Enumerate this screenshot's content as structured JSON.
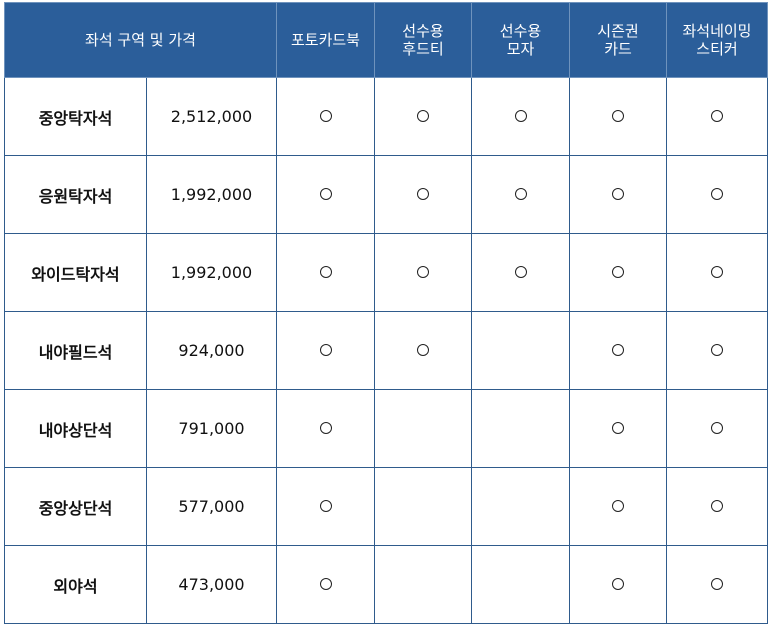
{
  "header": {
    "zone_price": "좌석 구역 및 가격",
    "benefits": [
      {
        "lines": [
          "포토카드북"
        ]
      },
      {
        "lines": [
          "선수용",
          "후드티"
        ]
      },
      {
        "lines": [
          "선수용",
          "모자"
        ]
      },
      {
        "lines": [
          "시즌권",
          "카드"
        ]
      },
      {
        "lines": [
          "좌석네이밍",
          "스티커"
        ]
      }
    ]
  },
  "mark_symbol": "circle",
  "rows": [
    {
      "zone": "중앙탁자석",
      "price": "2,512,000",
      "marks": [
        true,
        true,
        true,
        true,
        true
      ]
    },
    {
      "zone": "응원탁자석",
      "price": "1,992,000",
      "marks": [
        true,
        true,
        true,
        true,
        true
      ]
    },
    {
      "zone": "와이드탁자석",
      "price": "1,992,000",
      "marks": [
        true,
        true,
        true,
        true,
        true
      ]
    },
    {
      "zone": "내야필드석",
      "price": "924,000",
      "marks": [
        true,
        true,
        false,
        true,
        true
      ]
    },
    {
      "zone": "내야상단석",
      "price": "791,000",
      "marks": [
        true,
        false,
        false,
        true,
        true
      ]
    },
    {
      "zone": "중앙상단석",
      "price": "577,000",
      "marks": [
        true,
        false,
        false,
        true,
        true
      ]
    },
    {
      "zone": "외야석",
      "price": "473,000",
      "marks": [
        true,
        false,
        false,
        true,
        true
      ]
    }
  ]
}
